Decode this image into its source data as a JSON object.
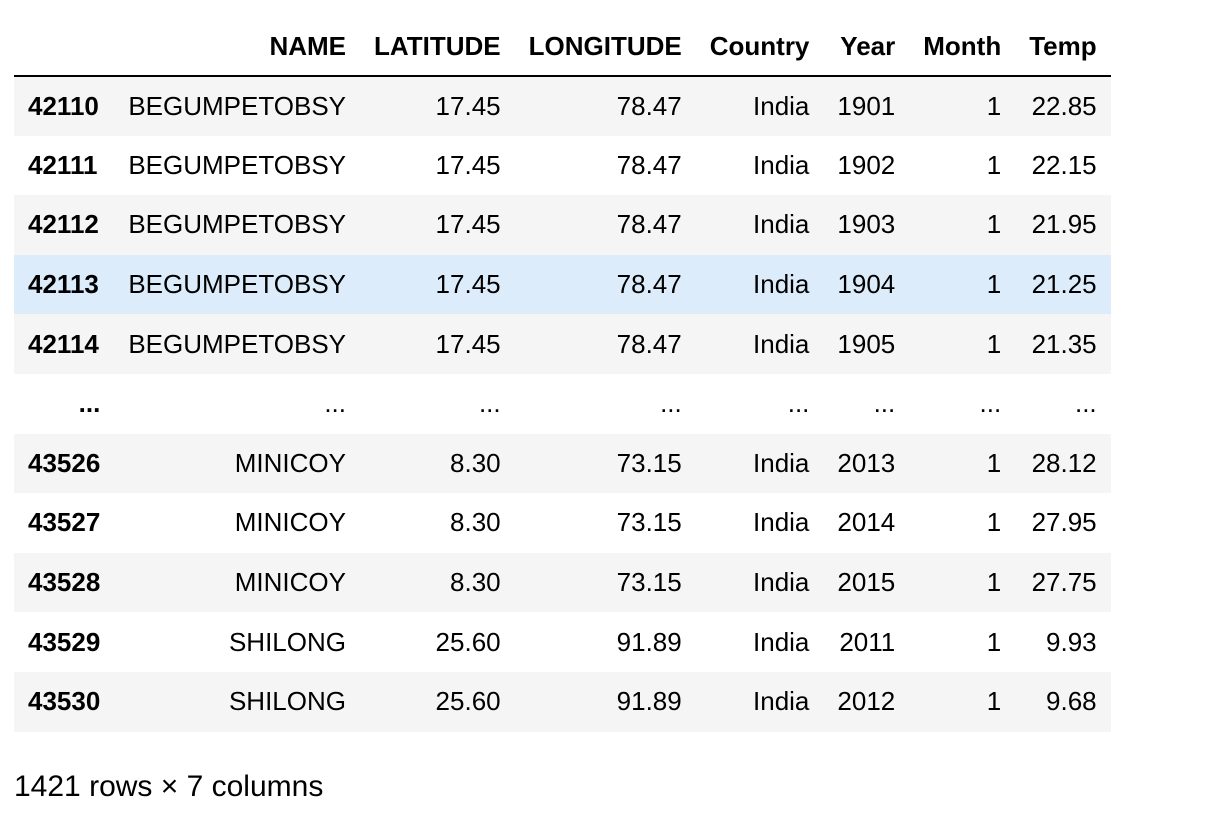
{
  "dataframe": {
    "columns": [
      "NAME",
      "LATITUDE",
      "LONGITUDE",
      "Country",
      "Year",
      "Month",
      "Temp"
    ],
    "rows": [
      {
        "index": "42110",
        "NAME": "BEGUMPETOBSY",
        "LATITUDE": "17.45",
        "LONGITUDE": "78.47",
        "Country": "India",
        "Year": "1901",
        "Month": "1",
        "Temp": "22.85"
      },
      {
        "index": "42111",
        "NAME": "BEGUMPETOBSY",
        "LATITUDE": "17.45",
        "LONGITUDE": "78.47",
        "Country": "India",
        "Year": "1902",
        "Month": "1",
        "Temp": "22.15"
      },
      {
        "index": "42112",
        "NAME": "BEGUMPETOBSY",
        "LATITUDE": "17.45",
        "LONGITUDE": "78.47",
        "Country": "India",
        "Year": "1903",
        "Month": "1",
        "Temp": "21.95"
      },
      {
        "index": "42113",
        "NAME": "BEGUMPETOBSY",
        "LATITUDE": "17.45",
        "LONGITUDE": "78.47",
        "Country": "India",
        "Year": "1904",
        "Month": "1",
        "Temp": "21.25"
      },
      {
        "index": "42114",
        "NAME": "BEGUMPETOBSY",
        "LATITUDE": "17.45",
        "LONGITUDE": "78.47",
        "Country": "India",
        "Year": "1905",
        "Month": "1",
        "Temp": "21.35"
      },
      {
        "index": "...",
        "NAME": "...",
        "LATITUDE": "...",
        "LONGITUDE": "...",
        "Country": "...",
        "Year": "...",
        "Month": "...",
        "Temp": "..."
      },
      {
        "index": "43526",
        "NAME": "MINICOY",
        "LATITUDE": "8.30",
        "LONGITUDE": "73.15",
        "Country": "India",
        "Year": "2013",
        "Month": "1",
        "Temp": "28.12"
      },
      {
        "index": "43527",
        "NAME": "MINICOY",
        "LATITUDE": "8.30",
        "LONGITUDE": "73.15",
        "Country": "India",
        "Year": "2014",
        "Month": "1",
        "Temp": "27.95"
      },
      {
        "index": "43528",
        "NAME": "MINICOY",
        "LATITUDE": "8.30",
        "LONGITUDE": "73.15",
        "Country": "India",
        "Year": "2015",
        "Month": "1",
        "Temp": "27.75"
      },
      {
        "index": "43529",
        "NAME": "SHILONG",
        "LATITUDE": "25.60",
        "LONGITUDE": "91.89",
        "Country": "India",
        "Year": "2011",
        "Month": "1",
        "Temp": "9.93"
      },
      {
        "index": "43530",
        "NAME": "SHILONG",
        "LATITUDE": "25.60",
        "LONGITUDE": "91.89",
        "Country": "India",
        "Year": "2012",
        "Month": "1",
        "Temp": "9.68"
      }
    ],
    "highlighted_row": 3,
    "shape_text": "1421 rows × 7 columns"
  }
}
